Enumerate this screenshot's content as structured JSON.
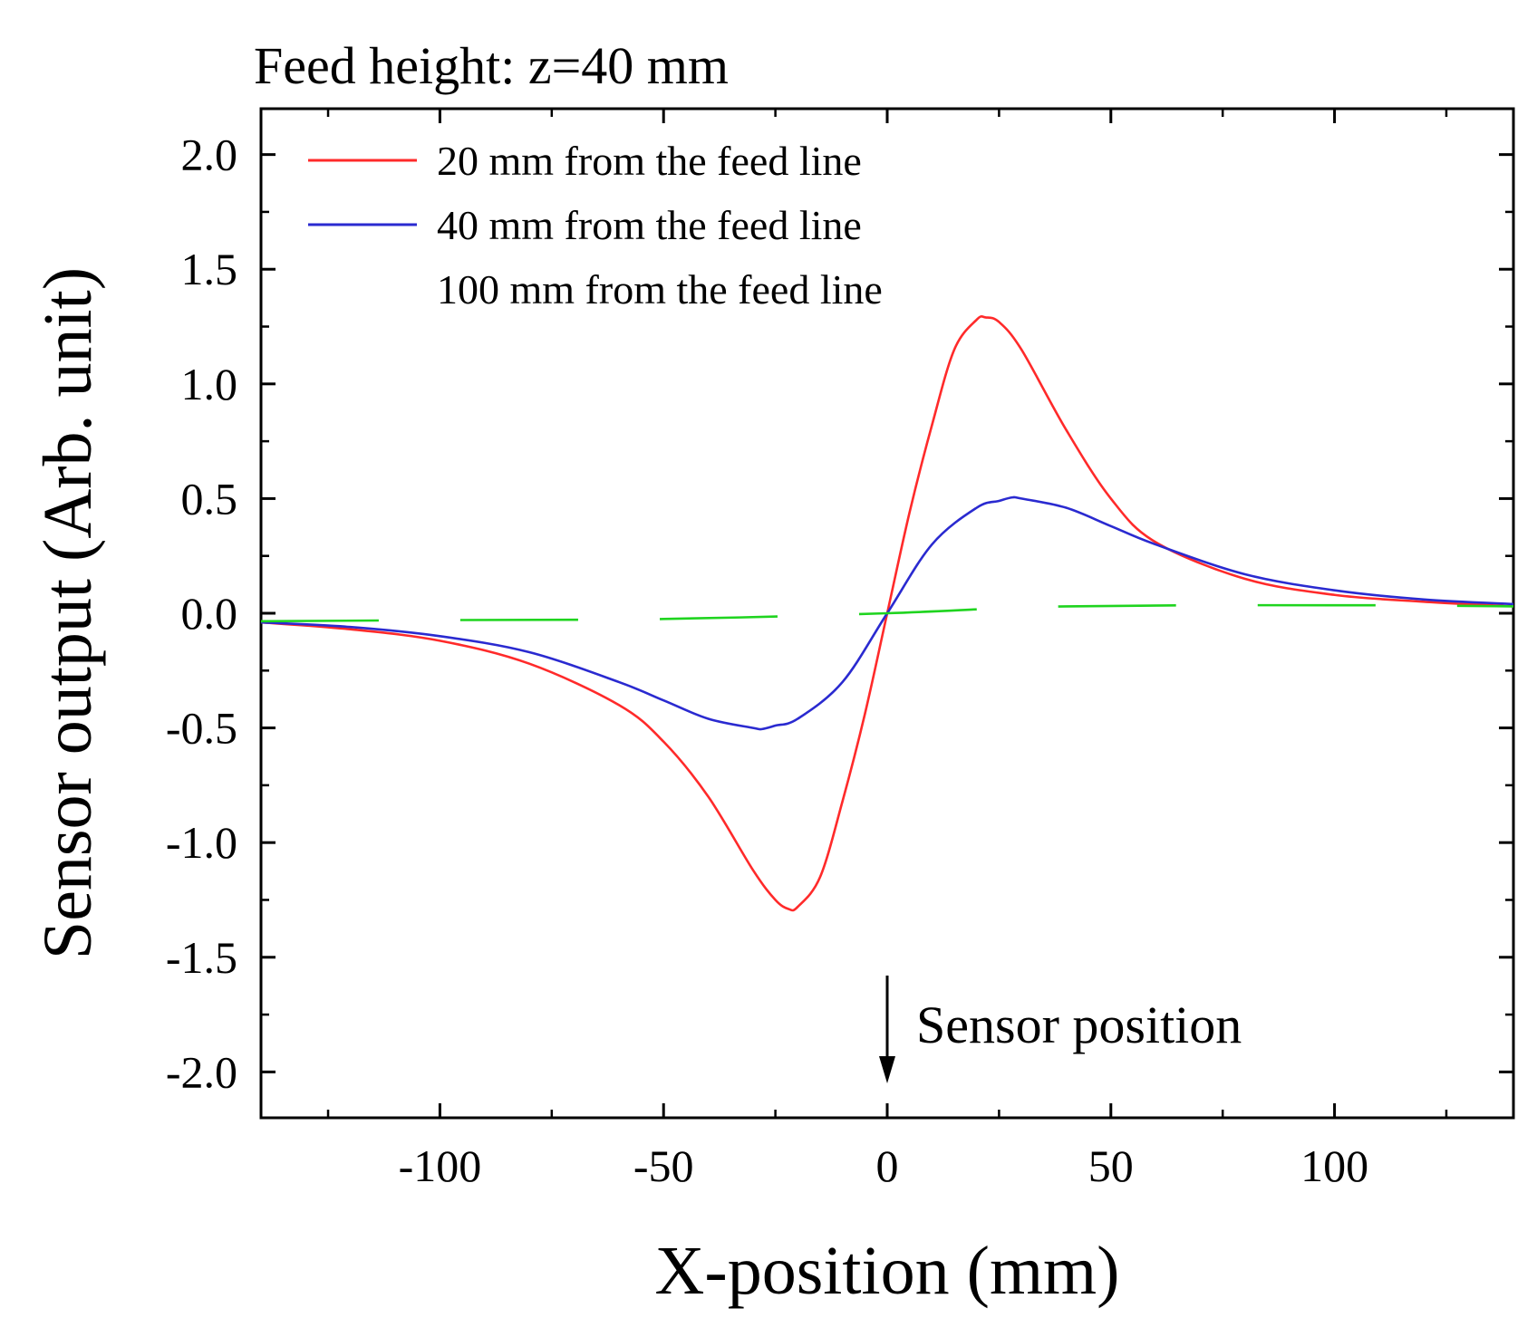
{
  "chart_data": {
    "type": "line",
    "title": "Feed height: z=40 mm",
    "xlabel": "X-position (mm)",
    "ylabel": "Sensor output (Arb. unit)",
    "xlim": [
      -140,
      140
    ],
    "ylim": [
      -2.2,
      2.2
    ],
    "x_ticks": [
      -100,
      -50,
      0,
      50,
      100
    ],
    "x_tick_labels": [
      "-100",
      "-50",
      "0",
      "50",
      "100"
    ],
    "y_ticks": [
      2.0,
      1.5,
      1.0,
      0.5,
      0.0,
      -0.5,
      -1.0,
      -1.5,
      -2.0
    ],
    "y_tick_labels": [
      "2.0",
      "1.5",
      "1.0",
      "0.5",
      "0.0",
      "-0.5",
      "-1.0",
      "-1.5",
      "-2.0"
    ],
    "grid": false,
    "legend_position": "top-left",
    "series": [
      {
        "name": "20 mm from the feed line",
        "color": "#ff2a2a",
        "dash": "solid",
        "x": [
          -140,
          -120,
          -100,
          -80,
          -60,
          -50,
          -40,
          -30,
          -25,
          -22,
          -20,
          -15,
          -10,
          -5,
          0,
          5,
          10,
          15,
          20,
          22,
          25,
          30,
          40,
          50,
          60,
          80,
          100,
          120,
          140
        ],
        "y": [
          -0.04,
          -0.07,
          -0.12,
          -0.22,
          -0.4,
          -0.56,
          -0.8,
          -1.12,
          -1.25,
          -1.29,
          -1.28,
          -1.15,
          -0.82,
          -0.44,
          0.0,
          0.44,
          0.82,
          1.15,
          1.28,
          1.29,
          1.27,
          1.15,
          0.8,
          0.5,
          0.31,
          0.15,
          0.08,
          0.05,
          0.03
        ]
      },
      {
        "name": "40 mm from the feed line",
        "color": "#2a2ad0",
        "dash": "solid",
        "x": [
          -140,
          -120,
          -100,
          -80,
          -60,
          -50,
          -40,
          -30,
          -28,
          -25,
          -20,
          -10,
          0,
          10,
          20,
          25,
          28,
          30,
          40,
          50,
          60,
          80,
          100,
          120,
          140
        ],
        "y": [
          -0.04,
          -0.06,
          -0.1,
          -0.17,
          -0.3,
          -0.38,
          -0.46,
          -0.5,
          -0.505,
          -0.49,
          -0.46,
          -0.3,
          0.0,
          0.3,
          0.46,
          0.49,
          0.505,
          0.5,
          0.46,
          0.38,
          0.3,
          0.17,
          0.1,
          0.06,
          0.04
        ]
      },
      {
        "name": "100 mm from the feed line",
        "color": "#1fd41f",
        "dash": "dashed",
        "x": [
          -140,
          -100,
          -50,
          0,
          40,
          100,
          140
        ],
        "y": [
          -0.035,
          -0.03,
          -0.025,
          0.0,
          0.03,
          0.035,
          0.03
        ]
      }
    ],
    "annotations": [
      {
        "text": "Sensor position",
        "arrow_x": 0,
        "arrow_from_y": -1.58,
        "arrow_to_y": -2.05
      }
    ]
  }
}
